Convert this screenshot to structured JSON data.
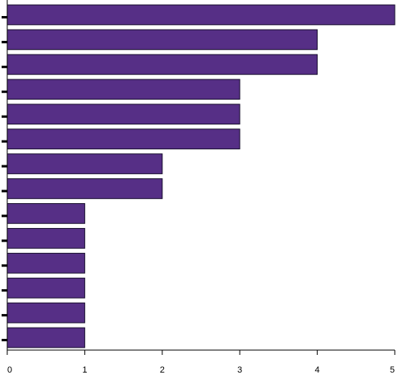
{
  "chart_data": {
    "type": "bar",
    "orientation": "horizontal",
    "values": [
      5,
      4,
      4,
      3,
      3,
      3,
      2,
      2,
      1,
      1,
      1,
      1,
      1,
      1
    ],
    "xlim": [
      0,
      5
    ],
    "x_ticks": [
      "0",
      "1",
      "2",
      "3",
      "4",
      "5"
    ],
    "grid": false,
    "bar_color": "#562f86",
    "bar_edge_color": "#1a1030"
  }
}
